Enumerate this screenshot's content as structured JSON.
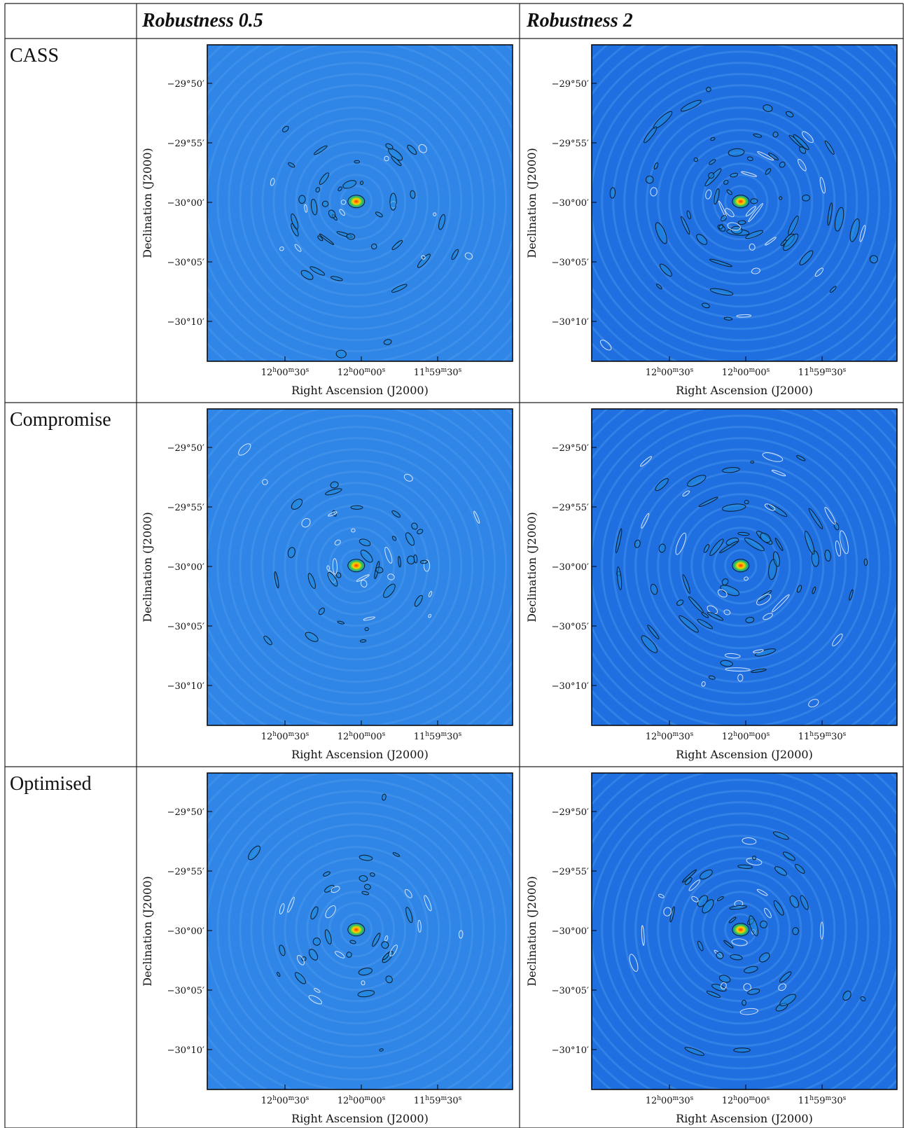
{
  "table": {
    "headers": [
      "",
      "Robustness 0.5",
      "Robustness 2"
    ],
    "rows": [
      "CASS",
      "Compromise",
      "Optimised"
    ]
  },
  "panel_axes": {
    "ylabel": "Declination (J2000)",
    "xlabel": "Right Ascension (J2000)",
    "yticks": [
      "−29°50′",
      "−29°55′",
      "−30°00′",
      "−30°05′",
      "−30°10′"
    ],
    "xticks": [
      {
        "h": "12",
        "m": "00",
        "s": "30"
      },
      {
        "h": "12",
        "m": "00",
        "s": "00"
      },
      {
        "h": "11",
        "m": "59",
        "s": "30"
      }
    ]
  },
  "colors": {
    "field_r05": "#2f86e6",
    "field_r2": "#1f6fe0",
    "ring": "#5aa0f0",
    "contour": "#0b1a2a",
    "neg_contour": "#d8e6ff",
    "source_core": "#ff2a00",
    "source_mid": "#ffd400",
    "source_outer": "#22c05a"
  },
  "panels": [
    {
      "row": 0,
      "col": 0,
      "field": "field_r05",
      "lobe_strength": 0.5
    },
    {
      "row": 0,
      "col": 1,
      "field": "field_r2",
      "lobe_strength": 1.0
    },
    {
      "row": 1,
      "col": 0,
      "field": "field_r05",
      "lobe_strength": 0.5
    },
    {
      "row": 1,
      "col": 1,
      "field": "field_r2",
      "lobe_strength": 1.0
    },
    {
      "row": 2,
      "col": 0,
      "field": "field_r05",
      "lobe_strength": 0.4
    },
    {
      "row": 2,
      "col": 1,
      "field": "field_r2",
      "lobe_strength": 0.7
    }
  ]
}
